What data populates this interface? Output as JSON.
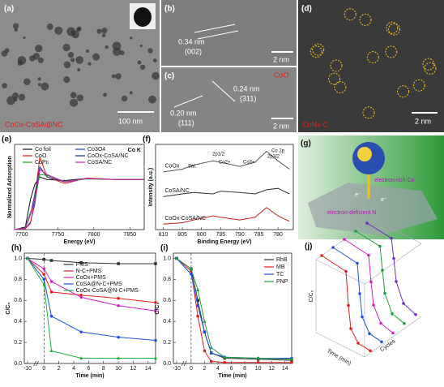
{
  "panels": {
    "a": {
      "label": "(a)",
      "scale": "100 nm",
      "sample": "CoOx-CoSA@NC"
    },
    "b": {
      "label": "(b)",
      "spacing": "0.34 nm",
      "plane": "(002)",
      "scale": "2 nm"
    },
    "c": {
      "label": "(c)",
      "phase": "CoO",
      "spacing_1": "0.24 nm",
      "plane_1": "(311)",
      "spacing_2": "0.20 nm",
      "plane_2": "(111)",
      "scale": "2 nm"
    },
    "d": {
      "label": "(d)",
      "sample": "CoNx-C",
      "scale": "2 nm"
    },
    "g": {
      "label": "(g)",
      "rich": "electron-rich Co",
      "deficient": "electron-deficient N",
      "electron": "e⁻"
    }
  },
  "chart_data": [
    {
      "type": "line",
      "panel_label": "(e)",
      "xlabel": "Energy (eV)",
      "ylabel": "Normalized Adsorption",
      "annotation": "Co K",
      "xlim": [
        7690,
        7870
      ],
      "xticks": [
        7700,
        7750,
        7800,
        7850
      ],
      "ylim": [
        0,
        1.7
      ],
      "legend": "top",
      "x": [
        7690,
        7705,
        7712,
        7718,
        7725,
        7735,
        7760,
        7790,
        7830,
        7870
      ],
      "series": [
        {
          "name": "Co foil",
          "color": "#111111",
          "values": [
            0,
            0.05,
            0.6,
            0.9,
            1.05,
            1.0,
            0.98,
            1.02,
            1.0,
            1.0
          ]
        },
        {
          "name": "Co3O4",
          "color": "#2040d0",
          "values": [
            0,
            0.02,
            0.15,
            0.5,
            1.2,
            1.1,
            0.95,
            1.02,
            1.0,
            1.0
          ]
        },
        {
          "name": "CoO",
          "color": "#e02020",
          "values": [
            0,
            0.02,
            0.12,
            0.6,
            1.45,
            1.05,
            0.92,
            1.03,
            1.0,
            1.0
          ]
        },
        {
          "name": "CoOx-CoSA/NC",
          "color": "#1a2a80",
          "values": [
            0,
            0.03,
            0.3,
            0.7,
            1.25,
            1.05,
            0.95,
            1.02,
            1.0,
            1.0
          ]
        },
        {
          "name": "CoPc",
          "color": "#20a020",
          "values": [
            0,
            0.03,
            0.35,
            0.55,
            1.1,
            1.08,
            0.96,
            1.01,
            1.0,
            1.0
          ]
        },
        {
          "name": "CoSA/NC",
          "color": "#d020c0",
          "values": [
            0,
            0.03,
            0.3,
            0.6,
            1.2,
            1.1,
            0.95,
            1.02,
            1.0,
            1.0
          ]
        }
      ]
    },
    {
      "type": "line",
      "panel_label": "(f)",
      "xlabel": "Binding Energy (eV)",
      "ylabel": "Intensity (a.u.)",
      "annotations": [
        "Co 2p",
        "Sat.",
        "2p1/2",
        "2p3/2",
        "Co2+",
        "Co3+"
      ],
      "xlim": [
        812,
        776
      ],
      "xticks": [
        810,
        805,
        800,
        795,
        790,
        785,
        780
      ],
      "ylim": [
        0,
        3.1
      ],
      "curve_labels": true,
      "x": [
        810,
        805,
        802,
        797,
        795,
        790,
        786,
        783,
        780,
        777
      ],
      "series": [
        {
          "name": "CoOx",
          "color": "#555555",
          "values": [
            2.1,
            2.2,
            2.35,
            2.5,
            2.45,
            2.3,
            2.45,
            2.85,
            2.5,
            2.2
          ]
        },
        {
          "name": "CoSA/NC",
          "color": "#333333",
          "values": [
            1.2,
            1.3,
            1.35,
            1.3,
            1.4,
            1.35,
            1.3,
            1.45,
            1.5,
            1.3
          ]
        },
        {
          "name": "CoOx-CoSA/NC",
          "color": "#c02020",
          "values": [
            0.2,
            0.25,
            0.35,
            0.5,
            0.45,
            0.35,
            0.45,
            0.8,
            0.5,
            0.3
          ]
        }
      ]
    },
    {
      "type": "line",
      "panel_label": "(h)",
      "xlabel": "Time (min)",
      "ylabel": "C/C₀",
      "x_break": true,
      "xlim": [
        -10,
        15
      ],
      "xticks": [
        -10,
        0,
        2,
        4,
        6,
        8,
        10,
        12,
        14
      ],
      "ylim": [
        0,
        1.05
      ],
      "yticks": [
        {
          "value": 0,
          "label": "0.0"
        },
        0.2,
        0.4,
        0.6,
        0.8,
        {
          "value": 1,
          "label": "1.0"
        }
      ],
      "legend": "upper-right",
      "x": [
        -10,
        0,
        1,
        5,
        10,
        15
      ],
      "series": [
        {
          "name": "PMS",
          "color": "#333333",
          "marker": "square",
          "values": [
            1.0,
            0.99,
            0.98,
            0.96,
            0.95,
            0.95
          ]
        },
        {
          "name": "N-C+PMS",
          "color": "#e02020",
          "marker": "circle",
          "values": [
            1.0,
            0.85,
            0.68,
            0.65,
            0.62,
            0.58
          ]
        },
        {
          "name": "CoOx+PMS",
          "color": "#d020c0",
          "marker": "circle",
          "values": [
            1.0,
            0.9,
            0.78,
            0.63,
            0.55,
            0.5
          ]
        },
        {
          "name": "CoSA@N-C+PMS",
          "color": "#2050e0",
          "marker": "circle",
          "values": [
            1.0,
            0.8,
            0.45,
            0.3,
            0.25,
            0.22
          ]
        },
        {
          "name": "CoOx-CoSA@N-C+PMS",
          "color": "#20b040",
          "marker": "triangle",
          "values": [
            1.0,
            0.75,
            0.12,
            0.05,
            0.05,
            0.05
          ]
        }
      ]
    },
    {
      "type": "line",
      "panel_label": "(i)",
      "xlabel": "Time (min)",
      "ylabel": "C/C₀",
      "x_break": true,
      "xlim": [
        -10,
        15
      ],
      "xticks": [
        -10,
        0,
        2,
        4,
        6,
        8,
        10,
        12,
        14
      ],
      "ylim": [
        0,
        1.05
      ],
      "yticks": [
        {
          "value": 0,
          "label": "0.0"
        },
        0.2,
        0.4,
        0.6,
        0.8,
        {
          "value": 1,
          "label": "1.0"
        }
      ],
      "legend": "top-right",
      "x": [
        -10,
        0,
        1,
        2,
        3,
        5,
        10,
        15
      ],
      "series": [
        {
          "name": "RhB",
          "color": "#333333",
          "marker": "square",
          "values": [
            1,
            0.9,
            0.6,
            0.3,
            0.1,
            0.05,
            0.04,
            0.03
          ]
        },
        {
          "name": "MB",
          "color": "#e02020",
          "marker": "circle",
          "values": [
            1,
            0.88,
            0.45,
            0.12,
            0.02,
            0.01,
            0.01,
            0.01
          ]
        },
        {
          "name": "TC",
          "color": "#2050e0",
          "marker": "circle",
          "values": [
            1,
            0.85,
            0.55,
            0.3,
            0.1,
            0.06,
            0.05,
            0.05
          ]
        },
        {
          "name": "PNP",
          "color": "#20a040",
          "marker": "triangle",
          "values": [
            1,
            0.9,
            0.7,
            0.4,
            0.15,
            0.06,
            0.05,
            0.04
          ]
        }
      ]
    },
    {
      "type": "waterfall",
      "panel_label": "(j)",
      "xlabel": "Time (min)",
      "ylabel": "C/C₀",
      "zlabel": "Cycles",
      "xlim": [
        -10,
        10
      ],
      "ylim": [
        0,
        1
      ],
      "x": [
        -10,
        0,
        1,
        2,
        5,
        10
      ],
      "series": [
        {
          "color": "#e02020",
          "values": [
            1,
            0.95,
            0.5,
            0.2,
            0.05,
            0.03
          ]
        },
        {
          "color": "#2050e0",
          "values": [
            1,
            0.95,
            0.55,
            0.25,
            0.07,
            0.04
          ]
        },
        {
          "color": "#d020c0",
          "values": [
            1,
            0.95,
            0.6,
            0.3,
            0.1,
            0.05
          ]
        },
        {
          "color": "#20a040",
          "values": [
            1,
            0.96,
            0.65,
            0.35,
            0.12,
            0.07
          ]
        },
        {
          "color": "#7030c0",
          "values": [
            1,
            0.96,
            0.7,
            0.4,
            0.15,
            0.08
          ]
        }
      ]
    }
  ]
}
